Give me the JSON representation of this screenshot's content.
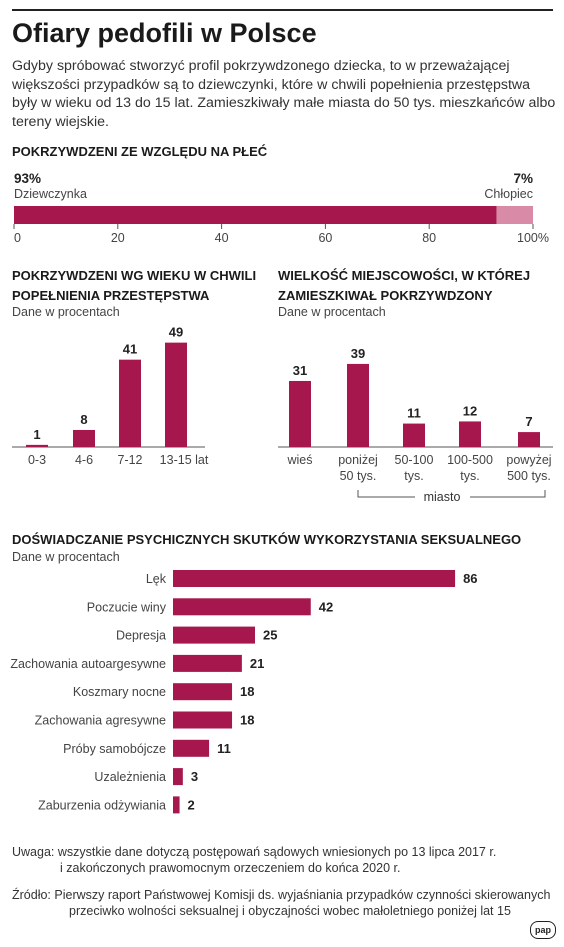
{
  "title": "Ofiary pedofili w Polsce",
  "intro": "Gdyby spróbować stworzyć profil pokrzywdzonego dziecka, to w przeważającej większości przypadków są to dziewczynki, które w chwili popełnienia przestępstwa były w wieku od 13 do 15 lat. Zamieszkiwały małe miasta do 50 tys. mieszkańców albo tereny wiejskie.",
  "colors": {
    "accent": "#a6174d",
    "accent_light": "#d98aa6",
    "text": "#222222"
  },
  "gender": {
    "title": "POKRZYWDZENI ZE WZGLĘDU NA PŁEĆ",
    "girl_pct": "93%",
    "girl_label": "Dziewczynka",
    "boy_pct": "7%",
    "boy_label": "Chłopiec"
  },
  "age": {
    "title_line1": "POKRZYWDZENI WG WIEKU W CHWILI",
    "title_line2": "POPEŁNIENIA PRZESTĘPSTWA",
    "subtitle": "Dane w procentach"
  },
  "town": {
    "title_line1": "WIELKOŚĆ MIEJSCOWOŚCI, W KTÓREJ",
    "title_line2": "ZAMIESZKIWAŁ POKRZYWDZONY",
    "subtitle": "Dane w procentach",
    "group_label": "miasto"
  },
  "effects": {
    "title": "DOŚWIADCZANIE PSYCHICZNYCH SKUTKÓW WYKORZYSTANIA SEKSUALNEGO",
    "subtitle": "Dane w procentach"
  },
  "notes": {
    "uwaga_1": "Uwaga: wszystkie dane dotyczą postępowań sądowych wniesionych po 13 lipca 2017 r.",
    "uwaga_2": "i zakończonych prawomocnym orzeczeniem do końca 2020 r.",
    "zrodlo_1": "Źródło: Pierwszy raport Państwowej Komisji ds. wyjaśniania przypadków czynności skierowanych",
    "zrodlo_2": "przeciwko wolności seksualnej i obyczajności wobec małoletniego poniżej lat 15"
  },
  "logo_text": "pap",
  "chart_data": [
    {
      "type": "bar",
      "orientation": "horizontal-stacked",
      "categories": [
        "Dziewczynka",
        "Chłopiec"
      ],
      "values": [
        93,
        7
      ],
      "xlim": [
        0,
        100
      ],
      "x_ticks": [
        "0",
        "20",
        "40",
        "60",
        "80",
        "100%"
      ]
    },
    {
      "type": "bar",
      "categories": [
        "0-3",
        "4-6",
        "7-12",
        "13-15 lat"
      ],
      "values": [
        1,
        8,
        41,
        49
      ]
    },
    {
      "type": "bar",
      "categories": [
        [
          "wieś"
        ],
        [
          "poniżej",
          "50 tys."
        ],
        [
          "50-100",
          "tys."
        ],
        [
          "100-500",
          "tys."
        ],
        [
          "powyżej",
          "500 tys."
        ]
      ],
      "values": [
        31,
        39,
        11,
        12,
        7
      ]
    },
    {
      "type": "bar",
      "orientation": "horizontal",
      "categories": [
        "Lęk",
        "Poczucie winy",
        "Depresja",
        "Zachowania autoargesywne",
        "Koszmary nocne",
        "Zachowania agresywne",
        "Próby samobójcze",
        "Uzależnienia",
        "Zaburzenia odżywiania"
      ],
      "values": [
        86,
        42,
        25,
        21,
        18,
        18,
        11,
        3,
        2
      ]
    }
  ]
}
